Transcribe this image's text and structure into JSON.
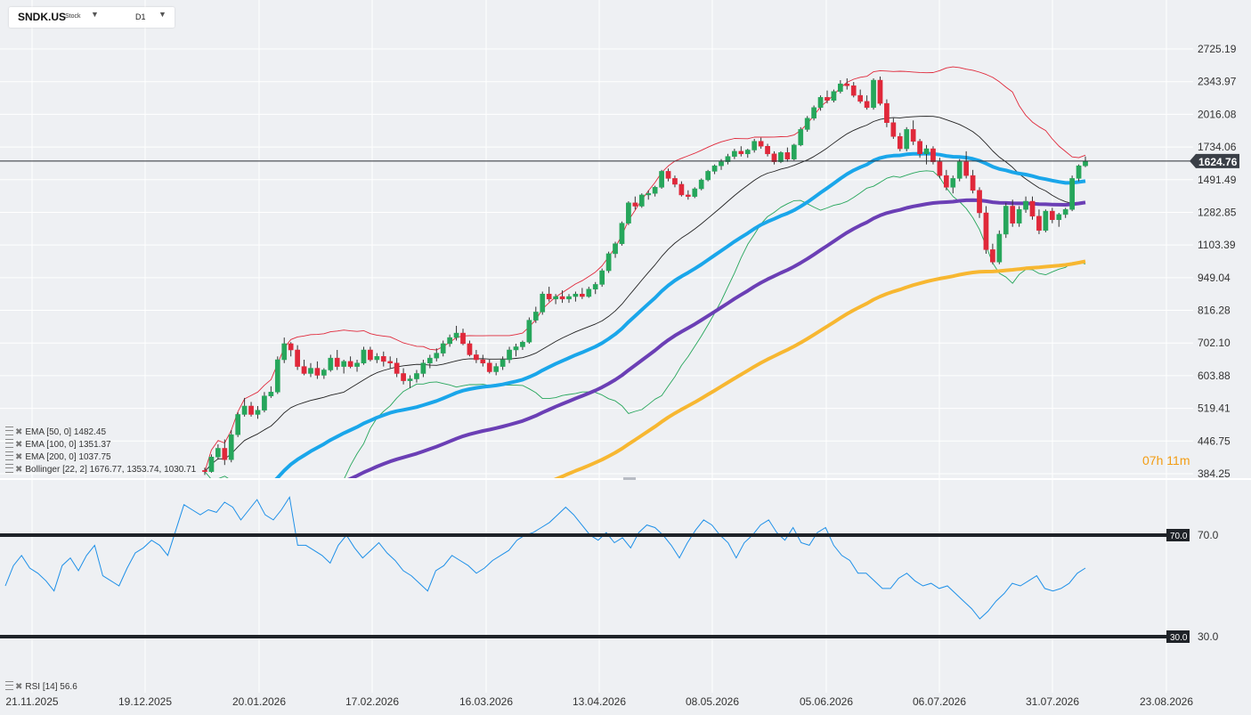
{
  "symbol": {
    "name": "SNDK.US",
    "type": "Stock",
    "timeframe": "D1"
  },
  "price_tag": {
    "value": "1624.76",
    "color": "#3a3f47"
  },
  "y_axis_labels": [
    "2725.19",
    "2343.97",
    "2016.08",
    "1734.06",
    "1491.49",
    "1282.85",
    "1103.39",
    "949.04",
    "816.28",
    "702.10",
    "603.88",
    "519.41",
    "446.75",
    "384.25"
  ],
  "x_axis_labels": [
    "21.11.2025",
    "19.12.2025",
    "20.01.2026",
    "17.02.2026",
    "16.03.2026",
    "13.04.2026",
    "08.05.2026",
    "05.06.2026",
    "06.07.2026",
    "31.07.2026",
    "23.08.2026"
  ],
  "legend": [
    {
      "label": "EMA [50, 0] 1482.45",
      "color": "#1aa6ea"
    },
    {
      "label": "EMA [100, 0] 1351.37",
      "color": "#6b3fb5"
    },
    {
      "label": "EMA [200, 0] 1037.75",
      "color": "#f7b731"
    },
    {
      "label": "Bollinger [22, 2] 1676.77, 1353.74, 1030.71",
      "color": "#222222"
    }
  ],
  "rsi_legend": "RSI [14] 56.6",
  "rsi_levels": [
    {
      "value": 70,
      "label": "70.0"
    },
    {
      "value": 30,
      "label": "30.0"
    }
  ],
  "countdown": {
    "hours": "07",
    "h": "h",
    "minutes": "11",
    "m": "m"
  },
  "colors": {
    "up": "#26a65b",
    "down": "#e0283a",
    "ema50": "#1aa6ea",
    "ema100": "#6b3fb5",
    "ema200": "#f7b731",
    "bb_upper": "#e0283a",
    "bb_mid": "#222222",
    "bb_lower": "#26a65b",
    "rsi": "#1e90e8",
    "grid": "#ffffff"
  },
  "chart_data": {
    "type": "candlestick",
    "log_scale": true,
    "y_ticks": [
      2725.19,
      2343.97,
      2016.08,
      1734.06,
      1491.49,
      1282.85,
      1103.39,
      949.04,
      816.28,
      702.1,
      603.88,
      519.41,
      446.75,
      384.25
    ],
    "last_price": 1624.76,
    "candles": [
      [
        390,
        395,
        382,
        388
      ],
      [
        388,
        420,
        386,
        415
      ],
      [
        415,
        440,
        410,
        432
      ],
      [
        432,
        450,
        400,
        410
      ],
      [
        410,
        470,
        405,
        460
      ],
      [
        460,
        510,
        455,
        505
      ],
      [
        505,
        545,
        500,
        525
      ],
      [
        525,
        535,
        500,
        505
      ],
      [
        505,
        525,
        495,
        515
      ],
      [
        515,
        560,
        510,
        550
      ],
      [
        550,
        575,
        545,
        560
      ],
      [
        560,
        660,
        555,
        650
      ],
      [
        650,
        720,
        640,
        700
      ],
      [
        700,
        705,
        660,
        680
      ],
      [
        680,
        695,
        620,
        630
      ],
      [
        630,
        650,
        605,
        610
      ],
      [
        610,
        640,
        600,
        625
      ],
      [
        625,
        645,
        595,
        605
      ],
      [
        605,
        625,
        595,
        620
      ],
      [
        620,
        665,
        615,
        655
      ],
      [
        655,
        680,
        620,
        630
      ],
      [
        630,
        650,
        610,
        645
      ],
      [
        645,
        660,
        625,
        630
      ],
      [
        630,
        650,
        615,
        640
      ],
      [
        640,
        690,
        635,
        680
      ],
      [
        680,
        690,
        645,
        650
      ],
      [
        650,
        670,
        640,
        660
      ],
      [
        660,
        675,
        630,
        645
      ],
      [
        645,
        660,
        625,
        640
      ],
      [
        640,
        655,
        600,
        610
      ],
      [
        610,
        625,
        580,
        590
      ],
      [
        590,
        605,
        570,
        595
      ],
      [
        595,
        620,
        585,
        610
      ],
      [
        610,
        650,
        600,
        640
      ],
      [
        640,
        665,
        625,
        655
      ],
      [
        655,
        685,
        645,
        670
      ],
      [
        670,
        710,
        660,
        700
      ],
      [
        700,
        730,
        690,
        720
      ],
      [
        720,
        760,
        710,
        735
      ],
      [
        735,
        750,
        695,
        700
      ],
      [
        700,
        710,
        660,
        665
      ],
      [
        665,
        680,
        640,
        650
      ],
      [
        650,
        665,
        630,
        640
      ],
      [
        640,
        650,
        610,
        615
      ],
      [
        615,
        640,
        605,
        630
      ],
      [
        630,
        660,
        620,
        650
      ],
      [
        650,
        690,
        640,
        680
      ],
      [
        680,
        700,
        660,
        690
      ],
      [
        690,
        710,
        680,
        705
      ],
      [
        705,
        790,
        700,
        780
      ],
      [
        780,
        830,
        770,
        810
      ],
      [
        810,
        890,
        800,
        880
      ],
      [
        880,
        910,
        850,
        860
      ],
      [
        860,
        880,
        840,
        870
      ],
      [
        870,
        895,
        845,
        860
      ],
      [
        860,
        880,
        845,
        870
      ],
      [
        870,
        890,
        850,
        880
      ],
      [
        880,
        905,
        860,
        870
      ],
      [
        870,
        910,
        865,
        900
      ],
      [
        900,
        930,
        880,
        920
      ],
      [
        920,
        990,
        910,
        980
      ],
      [
        980,
        1070,
        970,
        1060
      ],
      [
        1060,
        1120,
        1040,
        1110
      ],
      [
        1110,
        1230,
        1100,
        1220
      ],
      [
        1220,
        1350,
        1210,
        1340
      ],
      [
        1340,
        1380,
        1300,
        1320
      ],
      [
        1320,
        1400,
        1310,
        1390
      ],
      [
        1390,
        1420,
        1360,
        1400
      ],
      [
        1400,
        1450,
        1380,
        1440
      ],
      [
        1440,
        1560,
        1430,
        1550
      ],
      [
        1550,
        1570,
        1480,
        1500
      ],
      [
        1500,
        1520,
        1440,
        1460
      ],
      [
        1460,
        1480,
        1380,
        1390
      ],
      [
        1390,
        1420,
        1360,
        1380
      ],
      [
        1380,
        1440,
        1370,
        1430
      ],
      [
        1430,
        1500,
        1420,
        1490
      ],
      [
        1490,
        1560,
        1480,
        1550
      ],
      [
        1550,
        1600,
        1530,
        1590
      ],
      [
        1590,
        1640,
        1560,
        1620
      ],
      [
        1620,
        1680,
        1600,
        1660
      ],
      [
        1660,
        1720,
        1640,
        1700
      ],
      [
        1700,
        1740,
        1660,
        1680
      ],
      [
        1680,
        1720,
        1650,
        1710
      ],
      [
        1710,
        1800,
        1690,
        1780
      ],
      [
        1780,
        1810,
        1720,
        1740
      ],
      [
        1740,
        1760,
        1660,
        1680
      ],
      [
        1680,
        1700,
        1600,
        1620
      ],
      [
        1620,
        1700,
        1610,
        1690
      ],
      [
        1690,
        1730,
        1620,
        1640
      ],
      [
        1640,
        1760,
        1630,
        1750
      ],
      [
        1750,
        1900,
        1740,
        1880
      ],
      [
        1880,
        2000,
        1860,
        1980
      ],
      [
        1980,
        2100,
        1960,
        2080
      ],
      [
        2080,
        2200,
        2050,
        2180
      ],
      [
        2180,
        2250,
        2120,
        2150
      ],
      [
        2150,
        2260,
        2130,
        2240
      ],
      [
        2240,
        2360,
        2220,
        2320
      ],
      [
        2320,
        2380,
        2260,
        2300
      ],
      [
        2300,
        2340,
        2180,
        2200
      ],
      [
        2200,
        2260,
        2120,
        2140
      ],
      [
        2140,
        2200,
        2060,
        2080
      ],
      [
        2080,
        2380,
        2060,
        2360
      ],
      [
        2360,
        2400,
        2100,
        2120
      ],
      [
        2120,
        2160,
        1900,
        1940
      ],
      [
        1940,
        1980,
        1800,
        1820
      ],
      [
        1820,
        1850,
        1700,
        1720
      ],
      [
        1720,
        1900,
        1700,
        1880
      ],
      [
        1880,
        1960,
        1750,
        1780
      ],
      [
        1780,
        1800,
        1650,
        1680
      ],
      [
        1680,
        1750,
        1600,
        1720
      ],
      [
        1720,
        1740,
        1600,
        1620
      ],
      [
        1620,
        1650,
        1500,
        1520
      ],
      [
        1520,
        1560,
        1420,
        1440
      ],
      [
        1440,
        1520,
        1400,
        1500
      ],
      [
        1500,
        1640,
        1480,
        1620
      ],
      [
        1620,
        1700,
        1500,
        1520
      ],
      [
        1520,
        1560,
        1400,
        1420
      ],
      [
        1420,
        1440,
        1250,
        1280
      ],
      [
        1280,
        1320,
        1060,
        1080
      ],
      [
        1080,
        1110,
        1010,
        1020
      ],
      [
        1020,
        1180,
        1010,
        1160
      ],
      [
        1160,
        1340,
        1140,
        1320
      ],
      [
        1320,
        1360,
        1200,
        1220
      ],
      [
        1220,
        1320,
        1200,
        1300
      ],
      [
        1300,
        1380,
        1280,
        1350
      ],
      [
        1350,
        1380,
        1240,
        1260
      ],
      [
        1260,
        1300,
        1160,
        1180
      ],
      [
        1180,
        1300,
        1170,
        1290
      ],
      [
        1290,
        1310,
        1220,
        1240
      ],
      [
        1240,
        1280,
        1200,
        1270
      ],
      [
        1270,
        1310,
        1250,
        1300
      ],
      [
        1300,
        1520,
        1290,
        1500
      ],
      [
        1500,
        1600,
        1480,
        1590
      ],
      [
        1590,
        1660,
        1580,
        1624.76
      ]
    ],
    "rsi": [
      50,
      58,
      62,
      57,
      55,
      52,
      48,
      58,
      61,
      56,
      62,
      66,
      54,
      52,
      50,
      57,
      63,
      65,
      68,
      66,
      62,
      72,
      82,
      80,
      78,
      80,
      79,
      83,
      81,
      76,
      80,
      84,
      78,
      76,
      80,
      85,
      66,
      66,
      64,
      62,
      59,
      66,
      70,
      65,
      61,
      64,
      67,
      63,
      60,
      56,
      54,
      51,
      48,
      56,
      58,
      62,
      60,
      58,
      55,
      57,
      60,
      62,
      64,
      68,
      70,
      71,
      73,
      75,
      78,
      81,
      78,
      74,
      70,
      68,
      71,
      67,
      69,
      65,
      71,
      74,
      73,
      70,
      66,
      61,
      67,
      72,
      76,
      74,
      70,
      67,
      61,
      67,
      70,
      74,
      76,
      71,
      68,
      73,
      67,
      66,
      71,
      73,
      66,
      62,
      60,
      55,
      55,
      52,
      49,
      49,
      53,
      55,
      52,
      50,
      51,
      49,
      50,
      47,
      44,
      41,
      37,
      40,
      44,
      47,
      51,
      50,
      52,
      54,
      49,
      48,
      49,
      51,
      55,
      57
    ],
    "rsi_levels": [
      70,
      30
    ]
  }
}
